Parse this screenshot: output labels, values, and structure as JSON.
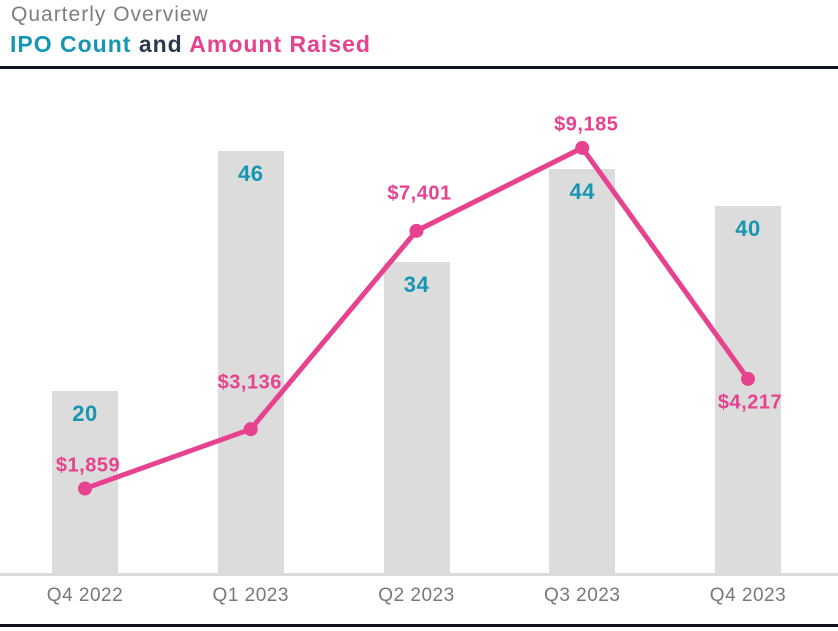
{
  "header": {
    "title": "Quarterly Overview",
    "subtitle_parts": [
      {
        "text": "IPO Count",
        "color": "#1796b4"
      },
      {
        "text": " and ",
        "color": "#2e3a4c"
      },
      {
        "text": "Amount Raised",
        "color": "#e7428f"
      }
    ]
  },
  "chart_data": {
    "type": "combo",
    "title": "Quarterly Overview",
    "subtitle": "IPO Count and Amount Raised",
    "categories": [
      "Q4 2022",
      "Q1 2023",
      "Q2 2023",
      "Q3 2023",
      "Q4 2023"
    ],
    "series": [
      {
        "name": "IPO Count",
        "type": "bar",
        "values": [
          20,
          46,
          34,
          44,
          40
        ],
        "data_labels": [
          "20",
          "46",
          "34",
          "44",
          "40"
        ],
        "label_color": "#1796b4",
        "bar_color": "#dcdcdc"
      },
      {
        "name": "Amount Raised",
        "type": "line",
        "values": [
          1859,
          3136,
          7401,
          9185,
          4217
        ],
        "data_labels": [
          "$1,859",
          "$3,136",
          "$7,401",
          "$9,185",
          "$4,217"
        ],
        "color": "#e7428f"
      }
    ],
    "legend": "none",
    "grid": "off",
    "value_axes_hidden": true,
    "colors": {
      "bar_fill": "#dcdcdc",
      "count_text": "#1796b4",
      "line_and_value_text": "#e7428f",
      "title_gray": "#7e7e81",
      "axis_label_gray": "#77787b",
      "axis_line_gray": "#dadada",
      "divider_dark": "#11151b"
    }
  }
}
